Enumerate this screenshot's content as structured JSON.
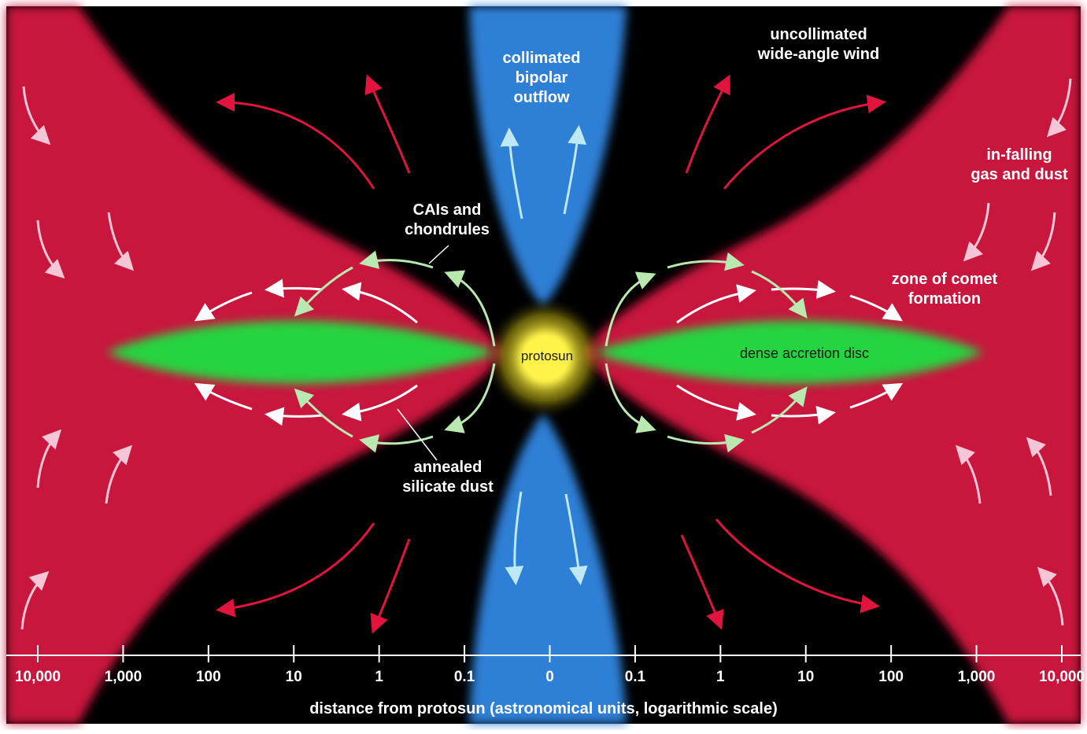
{
  "labels": {
    "collimated_outflow": "collimated\nbipolar\noutflow",
    "wide_angle_wind": "uncollimated\nwide-angle wind",
    "infalling": "in-falling\ngas and dust",
    "comet_zone": "zone of comet\nformation",
    "cais": "CAIs and\nchondrules",
    "protosun": "protosun",
    "accretion_disc": "dense accretion disc",
    "silicate_dust": "annealed\nsilicate dust"
  },
  "axis": {
    "ticks": [
      "10,000",
      "1,000",
      "100",
      "10",
      "1",
      "0.1",
      "0",
      "0.1",
      "1",
      "10",
      "100",
      "1,000",
      "10,000"
    ],
    "title": "distance from protosun (astronomical units, logarithmic scale)"
  },
  "colors": {
    "infall_region": "#c8173c",
    "background": "#000000",
    "outflow": "#2f7fd6",
    "disc": "#27d33f",
    "protosun": "#fff34a",
    "wind_arrow": "#e0143c",
    "infall_arrow": "#f7c6d6",
    "outflow_arrow": "#bfe8f5",
    "circulation_arrow": "#ffffff",
    "cai_arrow": "#b9e8b0"
  }
}
